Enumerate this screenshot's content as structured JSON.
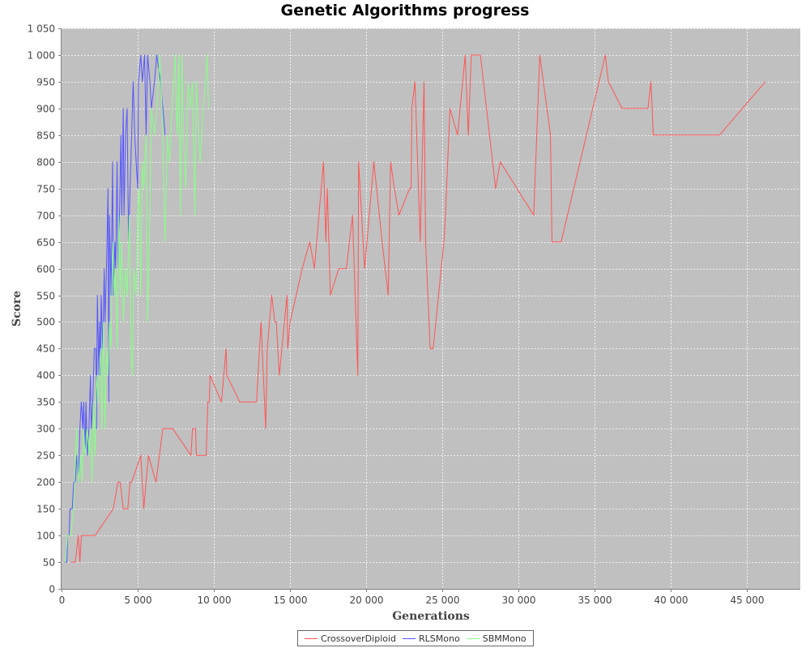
{
  "chart_data": {
    "type": "line",
    "title": "Genetic Algorithms progress",
    "xlabel": "Generations",
    "ylabel": "Score",
    "xlim": [
      0,
      48500
    ],
    "ylim": [
      0,
      1050
    ],
    "x_ticks": [
      0,
      5000,
      10000,
      15000,
      20000,
      25000,
      30000,
      35000,
      40000,
      45000
    ],
    "x_tick_labels": [
      "0",
      "5 000",
      "10 000",
      "15 000",
      "20 000",
      "25 000",
      "30 000",
      "35 000",
      "40 000",
      "45 000"
    ],
    "y_ticks": [
      0,
      50,
      100,
      150,
      200,
      250,
      300,
      350,
      400,
      450,
      500,
      550,
      600,
      650,
      700,
      750,
      800,
      850,
      900,
      950,
      1000,
      1050
    ],
    "y_tick_labels": [
      "0",
      "50",
      "100",
      "150",
      "200",
      "250",
      "300",
      "350",
      "400",
      "450",
      "500",
      "550",
      "600",
      "650",
      "700",
      "750",
      "800",
      "850",
      "900",
      "950",
      "1 000",
      "1 050"
    ],
    "grid": true,
    "legend_position": "bottom",
    "background_color": "#c0c0c0",
    "series": [
      {
        "name": "CrossoverDiploid",
        "color": "#ff5555",
        "points": [
          [
            600,
            50
          ],
          [
            900,
            50
          ],
          [
            1100,
            100
          ],
          [
            1200,
            50
          ],
          [
            1300,
            100
          ],
          [
            2200,
            100
          ],
          [
            3400,
            150
          ],
          [
            3700,
            200
          ],
          [
            3850,
            200
          ],
          [
            4050,
            150
          ],
          [
            4350,
            150
          ],
          [
            4500,
            200
          ],
          [
            4600,
            200
          ],
          [
            5200,
            250
          ],
          [
            5400,
            150
          ],
          [
            5700,
            250
          ],
          [
            6200,
            200
          ],
          [
            6650,
            300
          ],
          [
            7300,
            300
          ],
          [
            8500,
            250
          ],
          [
            8600,
            300
          ],
          [
            8800,
            300
          ],
          [
            8850,
            250
          ],
          [
            9500,
            250
          ],
          [
            9600,
            350
          ],
          [
            9700,
            350
          ],
          [
            9750,
            400
          ],
          [
            10500,
            350
          ],
          [
            10800,
            450
          ],
          [
            10850,
            400
          ],
          [
            11700,
            350
          ],
          [
            12800,
            350
          ],
          [
            13100,
            500
          ],
          [
            13400,
            300
          ],
          [
            13500,
            450
          ],
          [
            13800,
            550
          ],
          [
            14000,
            500
          ],
          [
            14100,
            500
          ],
          [
            14300,
            400
          ],
          [
            14800,
            550
          ],
          [
            14850,
            450
          ],
          [
            15000,
            500
          ],
          [
            15800,
            600
          ],
          [
            16300,
            650
          ],
          [
            16600,
            600
          ],
          [
            17200,
            800
          ],
          [
            17350,
            650
          ],
          [
            17450,
            750
          ],
          [
            17650,
            550
          ],
          [
            18200,
            600
          ],
          [
            18700,
            600
          ],
          [
            19100,
            700
          ],
          [
            19450,
            400
          ],
          [
            19500,
            800
          ],
          [
            19900,
            600
          ],
          [
            20500,
            800
          ],
          [
            21050,
            650
          ],
          [
            21450,
            550
          ],
          [
            21600,
            800
          ],
          [
            21850,
            750
          ],
          [
            22150,
            700
          ],
          [
            22850,
            750
          ],
          [
            22950,
            750
          ],
          [
            23000,
            900
          ],
          [
            23200,
            950
          ],
          [
            23550,
            650
          ],
          [
            23800,
            950
          ],
          [
            23900,
            650
          ],
          [
            24200,
            450
          ],
          [
            24400,
            450
          ],
          [
            25100,
            650
          ],
          [
            25200,
            700
          ],
          [
            25500,
            900
          ],
          [
            26000,
            850
          ],
          [
            26500,
            1000
          ],
          [
            26700,
            850
          ],
          [
            26900,
            1000
          ],
          [
            27500,
            1000
          ],
          [
            28500,
            750
          ],
          [
            28800,
            800
          ],
          [
            31000,
            700
          ],
          [
            31400,
            1000
          ],
          [
            32100,
            850
          ],
          [
            32200,
            650
          ],
          [
            32800,
            650
          ],
          [
            35700,
            1000
          ],
          [
            35900,
            950
          ],
          [
            36800,
            900
          ],
          [
            38100,
            900
          ],
          [
            38500,
            900
          ],
          [
            38700,
            950
          ],
          [
            38850,
            850
          ],
          [
            43200,
            850
          ],
          [
            46200,
            950
          ]
        ]
      },
      {
        "name": "RLSMono",
        "color": "#5555ff",
        "points": [
          [
            200,
            50
          ],
          [
            350,
            50
          ],
          [
            400,
            100
          ],
          [
            500,
            100
          ],
          [
            550,
            150
          ],
          [
            700,
            150
          ],
          [
            800,
            200
          ],
          [
            900,
            200
          ],
          [
            1000,
            250
          ],
          [
            1100,
            200
          ],
          [
            1200,
            300
          ],
          [
            1300,
            350
          ],
          [
            1400,
            300
          ],
          [
            1450,
            350
          ],
          [
            1550,
            250
          ],
          [
            1600,
            350
          ],
          [
            1700,
            250
          ],
          [
            1800,
            300
          ],
          [
            1900,
            400
          ],
          [
            1950,
            300
          ],
          [
            2050,
            350
          ],
          [
            2150,
            450
          ],
          [
            2250,
            450
          ],
          [
            2300,
            300
          ],
          [
            2350,
            550
          ],
          [
            2450,
            400
          ],
          [
            2500,
            500
          ],
          [
            2550,
            400
          ],
          [
            2600,
            550
          ],
          [
            2700,
            450
          ],
          [
            2800,
            600
          ],
          [
            2850,
            500
          ],
          [
            2950,
            600
          ],
          [
            3050,
            750
          ],
          [
            3100,
            350
          ],
          [
            3150,
            700
          ],
          [
            3250,
            550
          ],
          [
            3350,
            800
          ],
          [
            3400,
            550
          ],
          [
            3500,
            650
          ],
          [
            3550,
            600
          ],
          [
            3650,
            800
          ],
          [
            3700,
            600
          ],
          [
            3800,
            700
          ],
          [
            3900,
            850
          ],
          [
            3950,
            700
          ],
          [
            4050,
            900
          ],
          [
            4100,
            700
          ],
          [
            4200,
            850
          ],
          [
            4300,
            900
          ],
          [
            4400,
            650
          ],
          [
            4500,
            750
          ],
          [
            4700,
            950
          ],
          [
            4800,
            850
          ],
          [
            4900,
            800
          ],
          [
            5000,
            750
          ],
          [
            5050,
            950
          ],
          [
            5200,
            1000
          ],
          [
            5300,
            950
          ],
          [
            5450,
            1000
          ],
          [
            5550,
            850
          ],
          [
            5650,
            1000
          ],
          [
            5800,
            950
          ],
          [
            5900,
            900
          ],
          [
            6100,
            950
          ],
          [
            6250,
            1000
          ],
          [
            6500,
            950
          ],
          [
            6800,
            850
          ]
        ]
      },
      {
        "name": "SBMMono",
        "color": "#88ff88",
        "points": [
          [
            250,
            50
          ],
          [
            400,
            100
          ],
          [
            600,
            100
          ],
          [
            800,
            150
          ],
          [
            900,
            250
          ],
          [
            1000,
            300
          ],
          [
            1100,
            200
          ],
          [
            1250,
            250
          ],
          [
            1350,
            200
          ],
          [
            1450,
            300
          ],
          [
            1550,
            250
          ],
          [
            1700,
            300
          ],
          [
            1800,
            250
          ],
          [
            1900,
            300
          ],
          [
            2000,
            200
          ],
          [
            2100,
            350
          ],
          [
            2200,
            250
          ],
          [
            2300,
            400
          ],
          [
            2400,
            350
          ],
          [
            2550,
            450
          ],
          [
            2650,
            300
          ],
          [
            2750,
            500
          ],
          [
            2850,
            300
          ],
          [
            2950,
            450
          ],
          [
            3050,
            400
          ],
          [
            3150,
            500
          ],
          [
            3250,
            450
          ],
          [
            3350,
            650
          ],
          [
            3450,
            550
          ],
          [
            3550,
            600
          ],
          [
            3650,
            450
          ],
          [
            3750,
            700
          ],
          [
            3850,
            550
          ],
          [
            3950,
            650
          ],
          [
            4050,
            500
          ],
          [
            4200,
            600
          ],
          [
            4300,
            550
          ],
          [
            4450,
            700
          ],
          [
            4550,
            450
          ],
          [
            4650,
            400
          ],
          [
            4750,
            600
          ],
          [
            4900,
            550
          ],
          [
            5000,
            700
          ],
          [
            5100,
            750
          ],
          [
            5200,
            550
          ],
          [
            5300,
            800
          ],
          [
            5400,
            750
          ],
          [
            5550,
            850
          ],
          [
            5650,
            500
          ],
          [
            5800,
            700
          ],
          [
            5900,
            900
          ],
          [
            6100,
            850
          ],
          [
            6250,
            900
          ],
          [
            6450,
            1000
          ],
          [
            6600,
            900
          ],
          [
            6800,
            650
          ],
          [
            6950,
            850
          ],
          [
            7100,
            800
          ],
          [
            7250,
            900
          ],
          [
            7450,
            1000
          ],
          [
            7600,
            850
          ],
          [
            7700,
            1000
          ],
          [
            7800,
            700
          ],
          [
            7900,
            1000
          ],
          [
            8000,
            850
          ],
          [
            8150,
            750
          ],
          [
            8300,
            950
          ],
          [
            8450,
            900
          ],
          [
            8600,
            950
          ],
          [
            8750,
            700
          ],
          [
            8850,
            950
          ],
          [
            9000,
            850
          ],
          [
            9100,
            800
          ],
          [
            9300,
            900
          ],
          [
            9450,
            950
          ],
          [
            9550,
            1000
          ],
          [
            9650,
            900
          ]
        ]
      }
    ]
  }
}
